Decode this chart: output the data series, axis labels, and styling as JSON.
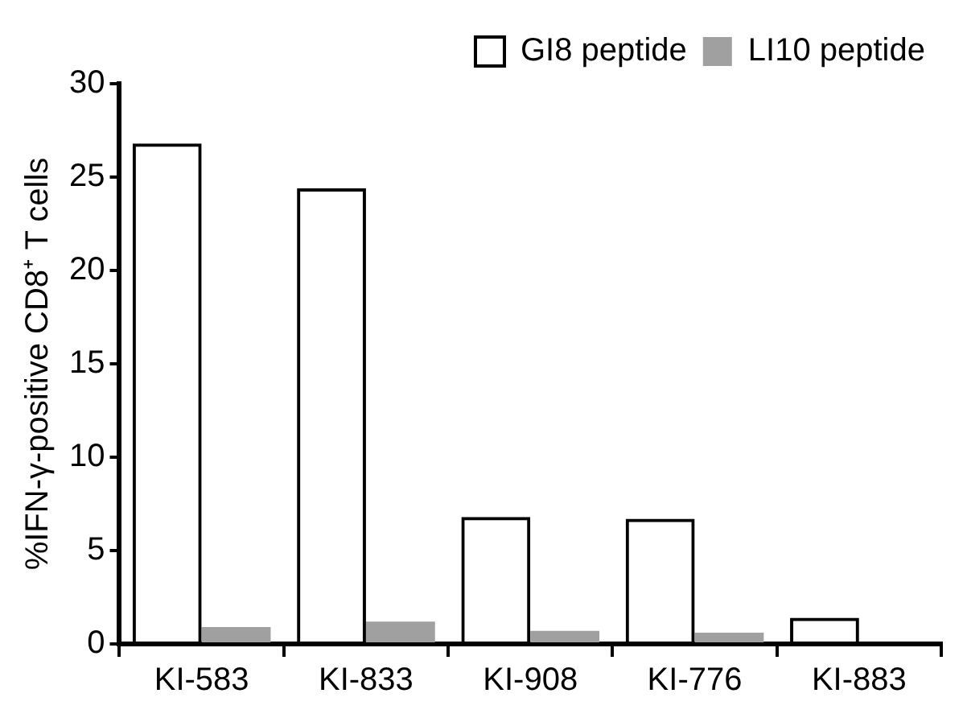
{
  "chart_data": {
    "type": "bar",
    "ylabel": "%IFN-γ-positive CD8⁺ T cells",
    "categories": [
      "KI-583",
      "KI-833",
      "KI-908",
      "KI-776",
      "KI-883"
    ],
    "series": [
      {
        "name": "GI8 peptide",
        "color": "#000000",
        "values": [
          26.8,
          24.4,
          6.8,
          6.7,
          1.4
        ]
      },
      {
        "name": "LI10 peptide",
        "color": "#a0a0a0",
        "values": [
          0.9,
          1.2,
          0.7,
          0.6,
          0
        ]
      }
    ],
    "ylim": [
      0,
      30
    ],
    "yticks": [
      0,
      5,
      10,
      15,
      20,
      25,
      30
    ],
    "legend": "top right",
    "grid": false
  }
}
